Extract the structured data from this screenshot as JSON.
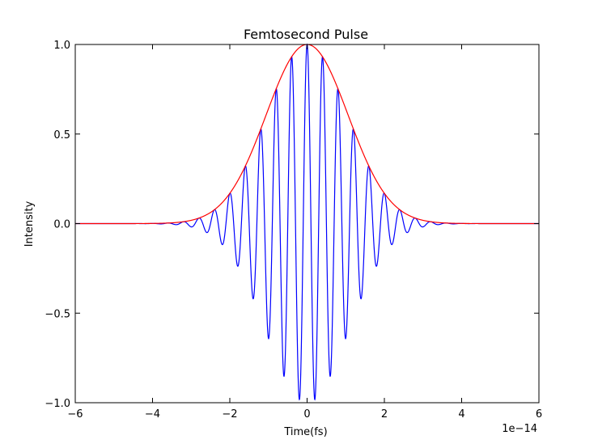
{
  "chart_data": {
    "type": "line",
    "title": "Femtosecond Pulse",
    "xlabel": "Time(fs)",
    "ylabel": "Intensity",
    "x_offset_label": "1e−14",
    "xlim": [
      -6,
      6
    ],
    "ylim": [
      -1.0,
      1.0
    ],
    "xticks": [
      -6,
      -4,
      -2,
      0,
      2,
      4,
      6
    ],
    "xtick_labels": [
      "−6",
      "−4",
      "−2",
      "0",
      "2",
      "4",
      "6"
    ],
    "yticks": [
      -1.0,
      -0.5,
      0.0,
      0.5,
      1.0
    ],
    "ytick_labels": [
      "−1.0",
      "−0.5",
      "0.0",
      "0.5",
      "1.0"
    ],
    "grid": false,
    "series": [
      {
        "role": "envelope",
        "color": "#ff0000",
        "function": "exp(-(x/1.5)^2)",
        "x_range": [
          -6,
          6
        ]
      },
      {
        "role": "carrier",
        "color": "#0000ff",
        "function": "exp(-(x/1.5)^2) * cos(2*pi*x/0.4)",
        "x_range": [
          -6,
          6
        ]
      }
    ]
  }
}
